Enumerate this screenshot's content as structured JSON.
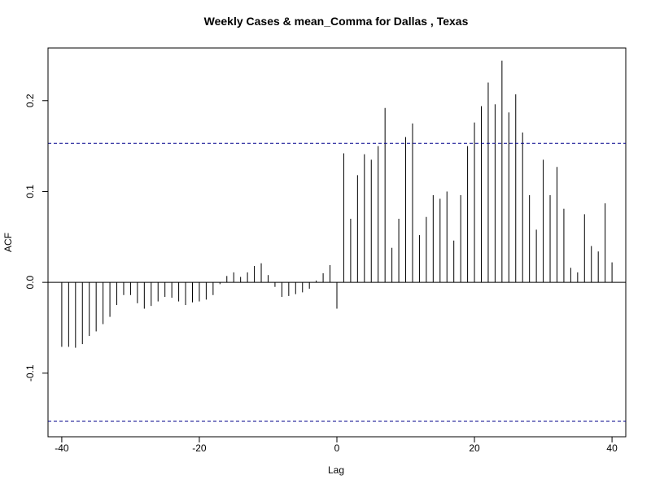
{
  "chart_data": {
    "type": "bar",
    "title": "Weekly Cases & mean_Comma for Dallas , Texas",
    "xlabel": "Lag",
    "ylabel": "ACF",
    "xlim": [
      -42,
      42
    ],
    "ylim": [
      -0.17,
      0.258
    ],
    "xticks": [
      -40,
      -20,
      0,
      20,
      40
    ],
    "yticks": [
      -0.1,
      0.0,
      0.1,
      0.2
    ],
    "grid": false,
    "legend": "none",
    "confidence_bound": 0.153,
    "bar_color": "#000000",
    "bound_color": "#00008b",
    "lags": [
      -40,
      -39,
      -38,
      -37,
      -36,
      -35,
      -34,
      -33,
      -32,
      -31,
      -30,
      -29,
      -28,
      -27,
      -26,
      -25,
      -24,
      -23,
      -22,
      -21,
      -20,
      -19,
      -18,
      -17,
      -16,
      -15,
      -14,
      -13,
      -12,
      -11,
      -10,
      -9,
      -8,
      -7,
      -6,
      -5,
      -4,
      -3,
      -2,
      -1,
      0,
      1,
      2,
      3,
      4,
      5,
      6,
      7,
      8,
      9,
      10,
      11,
      12,
      13,
      14,
      15,
      16,
      17,
      18,
      19,
      20,
      21,
      22,
      23,
      24,
      25,
      26,
      27,
      28,
      29,
      30,
      31,
      32,
      33,
      34,
      35,
      36,
      37,
      38,
      39,
      40
    ],
    "values": [
      -0.071,
      -0.071,
      -0.072,
      -0.068,
      -0.059,
      -0.054,
      -0.046,
      -0.038,
      -0.025,
      -0.014,
      -0.014,
      -0.023,
      -0.029,
      -0.026,
      -0.021,
      -0.016,
      -0.017,
      -0.021,
      -0.025,
      -0.022,
      -0.021,
      -0.019,
      -0.014,
      -0.002,
      0.007,
      0.011,
      0.006,
      0.011,
      0.018,
      0.021,
      0.008,
      -0.005,
      -0.016,
      -0.015,
      -0.013,
      -0.011,
      -0.007,
      0.002,
      0.01,
      0.019,
      -0.029,
      0.142,
      0.07,
      0.118,
      0.141,
      0.135,
      0.15,
      0.192,
      0.038,
      0.07,
      0.16,
      0.175,
      0.052,
      0.072,
      0.096,
      0.092,
      0.1,
      0.046,
      0.096,
      0.15,
      0.176,
      0.194,
      0.22,
      0.196,
      0.244,
      0.187,
      0.207,
      0.165,
      0.096,
      0.058,
      0.135,
      0.096,
      0.127,
      0.081,
      0.016,
      0.011,
      0.075,
      0.04,
      0.034,
      0.087,
      0.022
    ]
  }
}
